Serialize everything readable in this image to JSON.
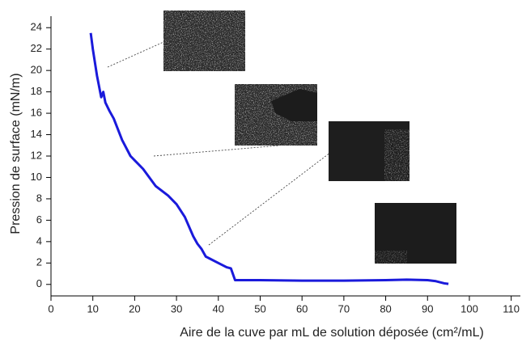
{
  "chart_data": {
    "type": "line",
    "x_label": "Aire de la cuve par mL de solution déposée (cm²/mL)",
    "y_label": "Pression de surface (mN/m)",
    "xlim": [
      0,
      112
    ],
    "ylim": [
      -1,
      25
    ],
    "xticks": [
      0,
      10,
      20,
      30,
      40,
      50,
      60,
      70,
      80,
      90,
      100,
      110
    ],
    "yticks": [
      0,
      2,
      4,
      6,
      8,
      10,
      12,
      14,
      16,
      18,
      20,
      22,
      24
    ],
    "series": [
      {
        "color": "#1a1adb",
        "x": [
          9.5,
          10,
          11,
          11.5,
          12,
          12.5,
          13,
          14,
          15,
          17,
          19,
          20,
          22,
          25,
          28,
          30,
          32,
          34,
          35,
          36,
          37,
          38,
          40,
          42,
          43,
          44,
          50,
          60,
          70,
          80,
          85,
          90,
          92,
          94,
          95
        ],
        "values": [
          23.5,
          22,
          19.5,
          18.5,
          17.5,
          18,
          17,
          16.2,
          15.5,
          13.5,
          12,
          11.6,
          10.8,
          9.2,
          8.3,
          7.5,
          6.3,
          4.5,
          3.8,
          3.3,
          2.6,
          2.4,
          2.0,
          1.6,
          1.5,
          0.4,
          0.4,
          0.35,
          0.35,
          0.4,
          0.45,
          0.4,
          0.3,
          0.1,
          0.05
        ]
      }
    ]
  }
}
